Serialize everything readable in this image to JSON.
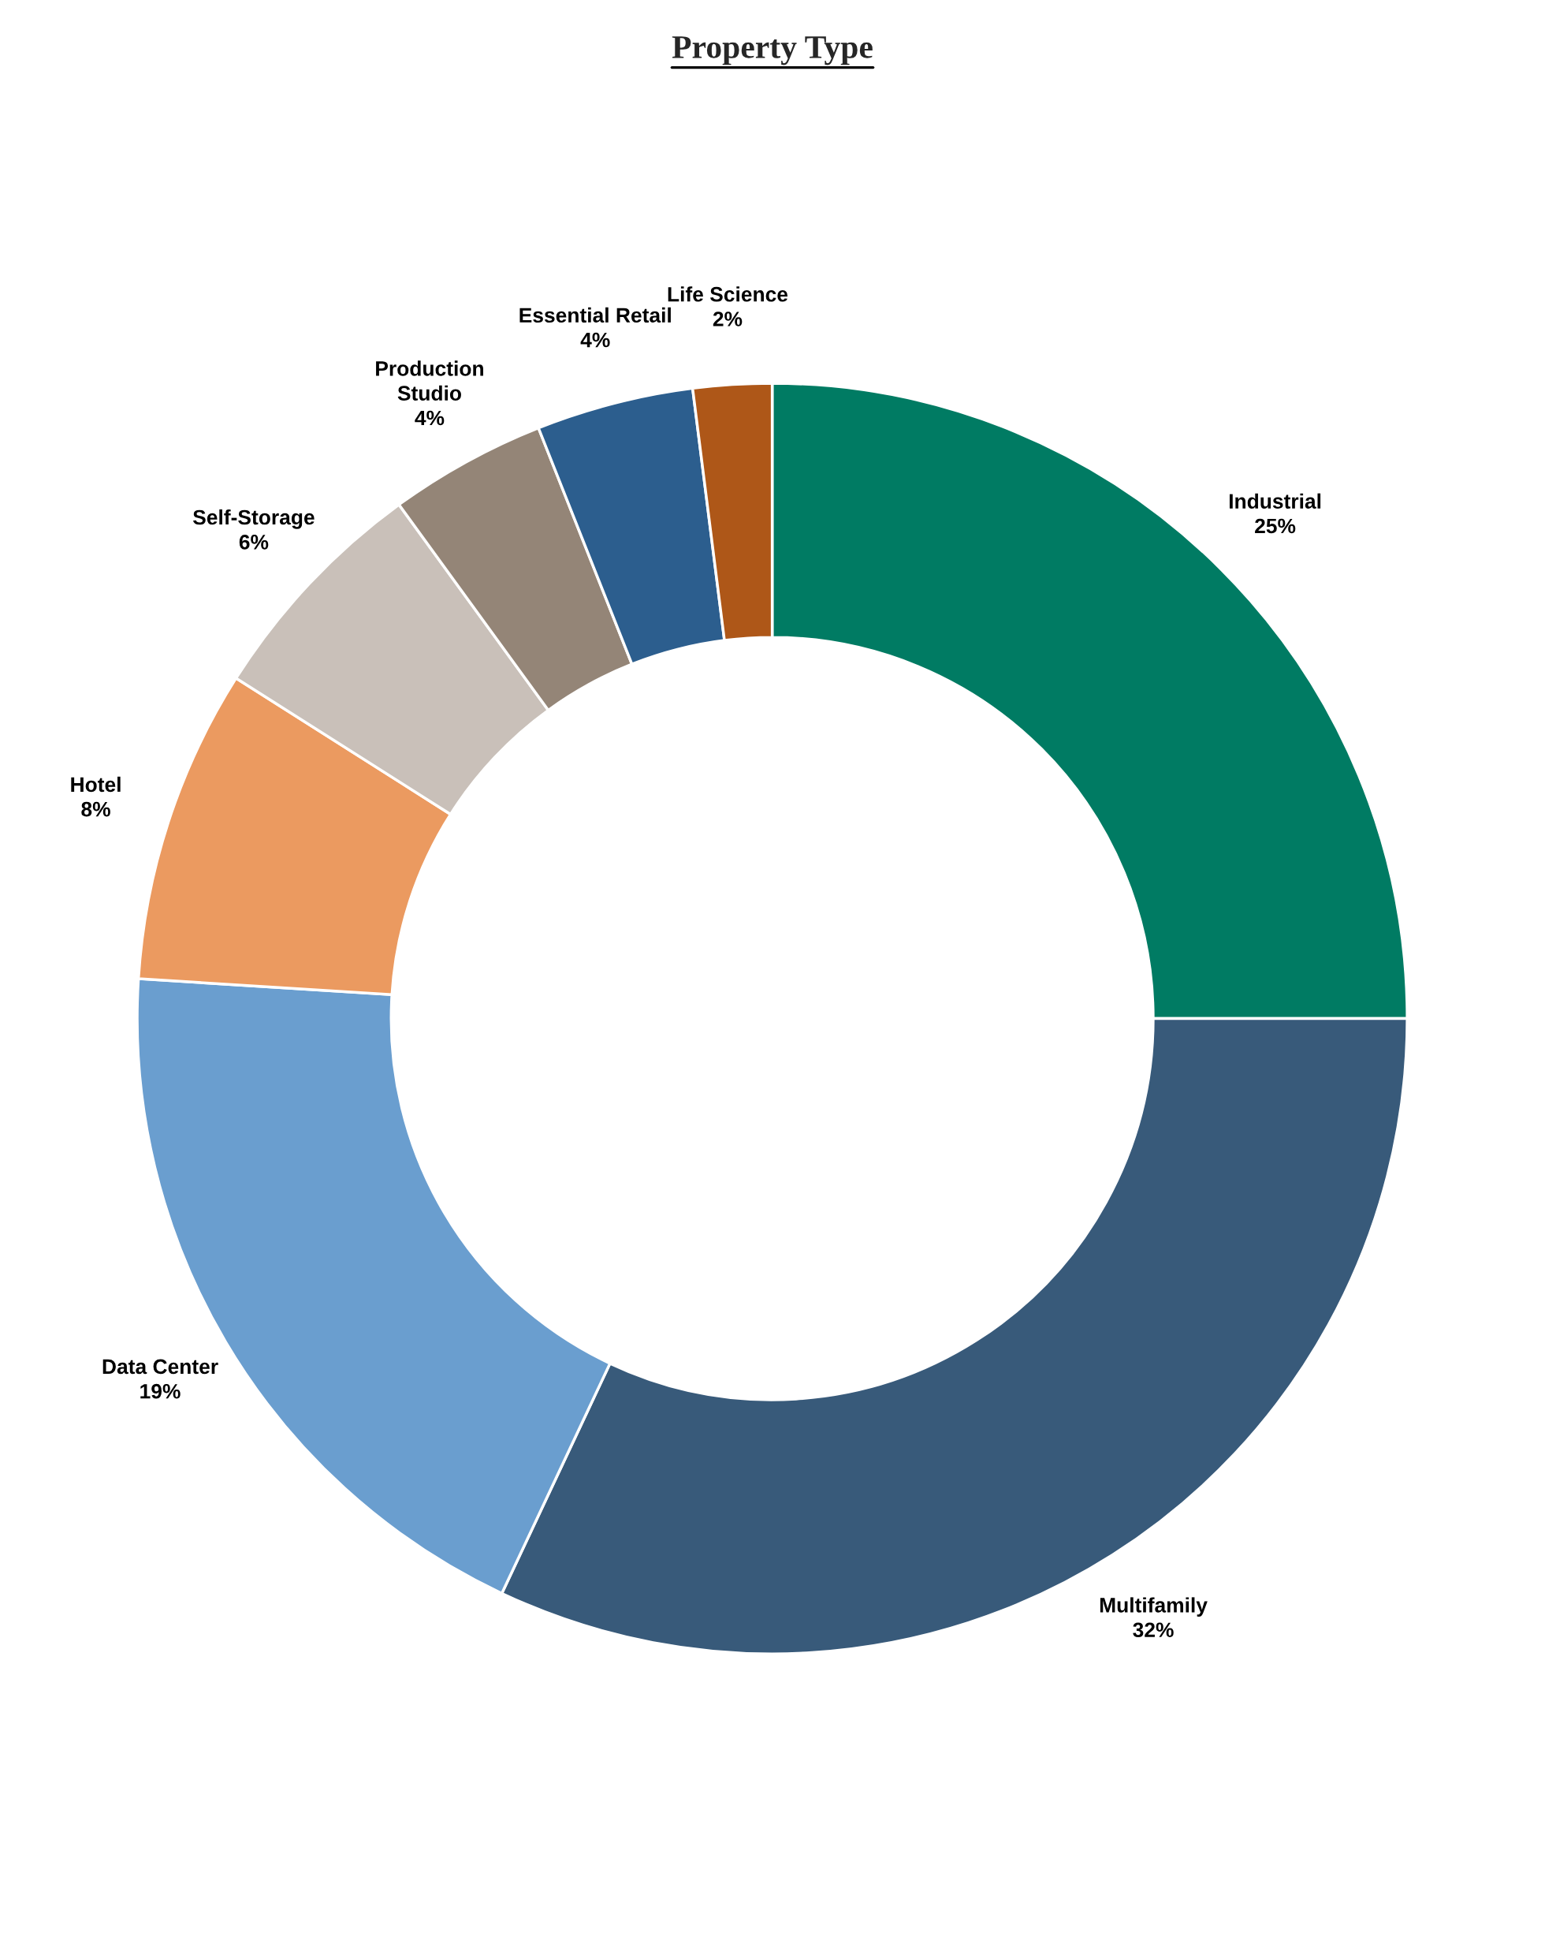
{
  "chart_data": {
    "type": "donut",
    "title": "Property Type",
    "categories": [
      "Industrial",
      "Multifamily",
      "Data Center",
      "Hotel",
      "Self-Storage",
      "Production\nStudio",
      "Essential Retail",
      "Life Science"
    ],
    "values": [
      25,
      32,
      19,
      8,
      6,
      4,
      4,
      2
    ],
    "value_labels": [
      "25%",
      "32%",
      "19%",
      "8%",
      "6%",
      "4%",
      "4%",
      "2%"
    ],
    "colors": [
      "#007b63",
      "#385a7a",
      "#6a9ecf",
      "#eb9a60",
      "#c9c0b9",
      "#948577",
      "#2c5e8e",
      "#ae5718"
    ],
    "legend": false
  }
}
